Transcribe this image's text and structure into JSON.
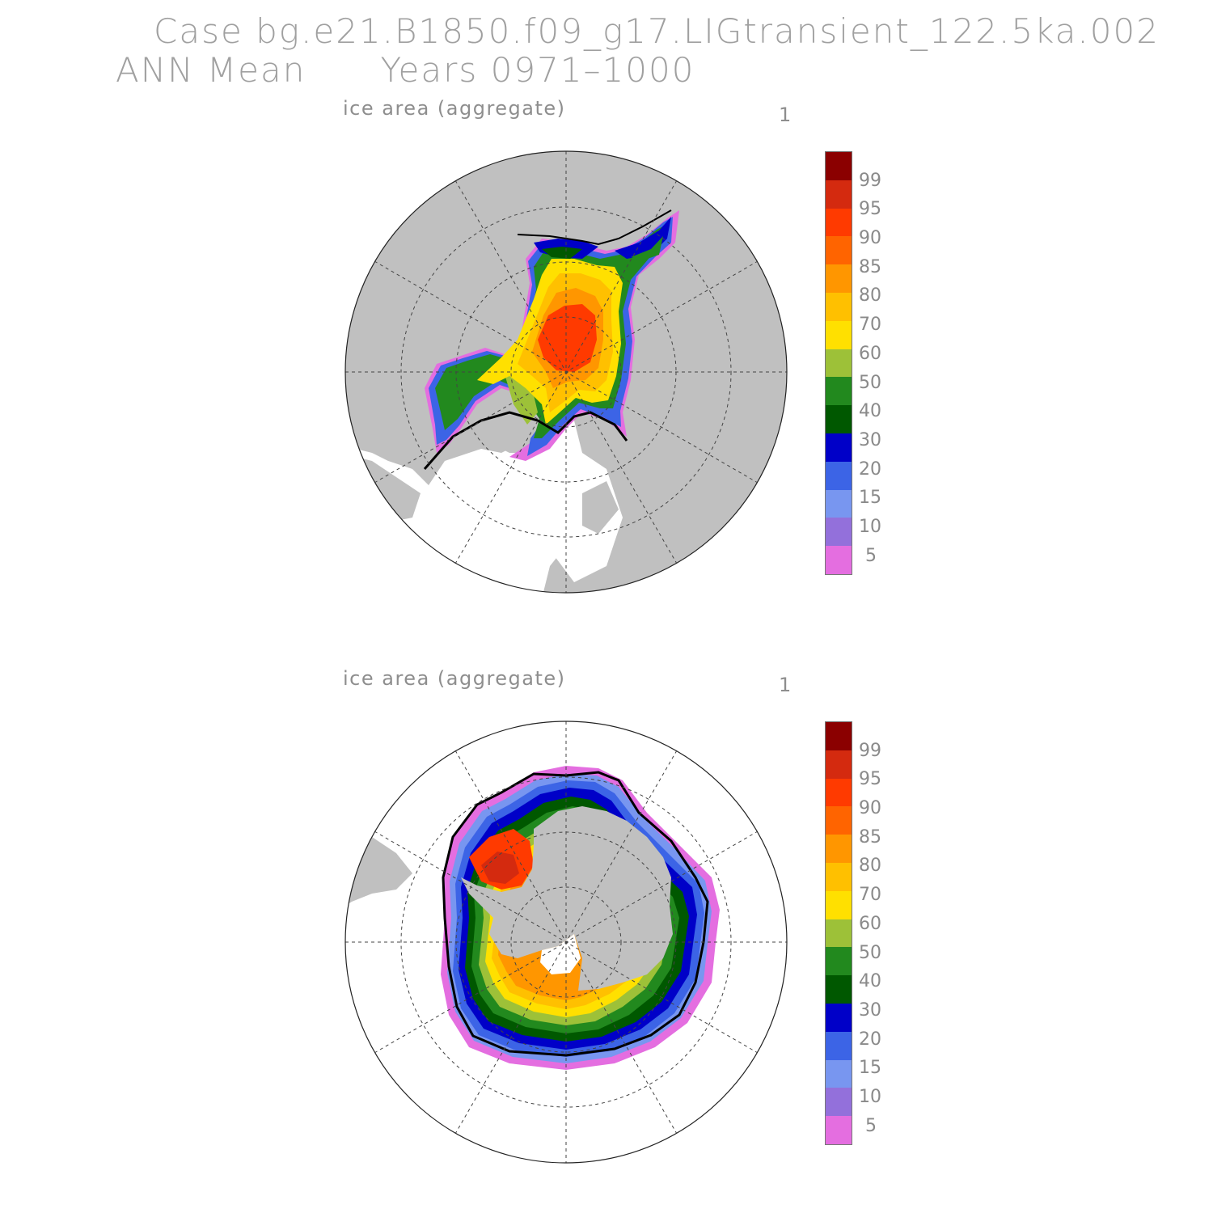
{
  "header": {
    "line1": "Case bg.e21.B1850.f09_g17.LIGtransient_122.5ka.002",
    "line2": "ANN Mean      Years 0971–1000"
  },
  "panels": [
    {
      "title": "ice area  (aggregate)",
      "number": "1",
      "hemisphere": "north"
    },
    {
      "title": "ice area  (aggregate)",
      "number": "1",
      "hemisphere": "south"
    }
  ],
  "colorbar": {
    "labels": [
      "99",
      "95",
      "90",
      "85",
      "80",
      "70",
      "60",
      "50",
      "40",
      "30",
      "20",
      "15",
      "10",
      "5"
    ],
    "colors": [
      "#8b0000",
      "#d42a0f",
      "#ff3a00",
      "#ff6400",
      "#ff9600",
      "#ffc000",
      "#ffe000",
      "#9dc138",
      "#22891e",
      "#005800",
      "#0000c8",
      "#3c64e6",
      "#7896f0",
      "#9370db",
      "#e46ee0"
    ]
  },
  "colors": {
    "land": "#c0c0c0",
    "ocean": "#ffffff",
    "grid": "#444444",
    "ice_edge": "#000000"
  }
}
